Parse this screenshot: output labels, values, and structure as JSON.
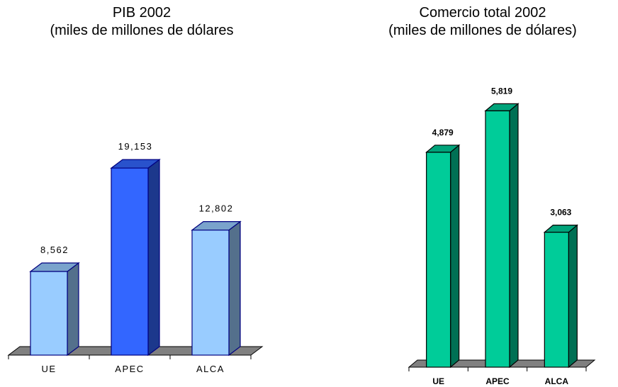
{
  "chart_data": [
    {
      "type": "bar",
      "title": "PIB 2002",
      "subtitle": "(miles de millones de dólares",
      "categories": [
        "UE",
        "APEC",
        "ALCA"
      ],
      "values": [
        8562,
        19153,
        12802
      ],
      "value_labels": [
        "8,562",
        "19,153",
        "12,802"
      ],
      "colors": [
        "#99ccff",
        "#3366ff",
        "#99ccff"
      ],
      "ylim": [
        0,
        27000
      ],
      "grid": false,
      "style": "3d"
    },
    {
      "type": "bar",
      "title": "Comercio total 2002",
      "subtitle": "(miles de millones de dólares)",
      "categories": [
        "UE",
        "APEC",
        "ALCA"
      ],
      "values": [
        4879,
        5819,
        3063
      ],
      "value_labels": [
        "4,879",
        "5,819",
        "3,063"
      ],
      "colors": [
        "#00cc99",
        "#00cc99",
        "#00cc99"
      ],
      "ylim": [
        0,
        7000
      ],
      "grid": false,
      "style": "3d"
    }
  ]
}
